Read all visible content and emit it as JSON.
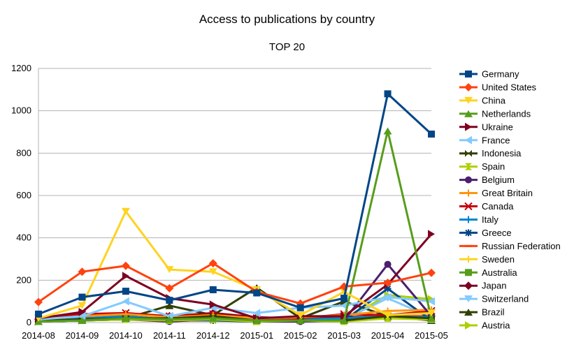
{
  "chart_data": {
    "type": "line",
    "title": "Access to publications by country",
    "subtitle": "TOP 20",
    "xlabel": "",
    "ylabel": "",
    "ylim": [
      0,
      1200
    ],
    "yticks": [
      0,
      200,
      400,
      600,
      800,
      1000,
      1200
    ],
    "grid": "horizontal",
    "legend_position": "right",
    "categories": [
      "2014-08",
      "2014-09",
      "2014-10",
      "2014-11",
      "2014-12",
      "2015-01",
      "2015-02",
      "2015-03",
      "2015-04",
      "2015-05"
    ],
    "series": [
      {
        "name": "Germany",
        "color": "#004586",
        "marker": "square",
        "values": [
          40,
          120,
          148,
          105,
          155,
          140,
          70,
          115,
          1080,
          890
        ]
      },
      {
        "name": "United States",
        "color": "#ff420e",
        "marker": "diamond",
        "values": [
          97,
          240,
          268,
          162,
          280,
          145,
          90,
          170,
          188,
          235
        ]
      },
      {
        "name": "China",
        "color": "#ffd320",
        "marker": "triangle-down",
        "values": [
          20,
          80,
          525,
          250,
          240,
          155,
          35,
          145,
          35,
          45
        ]
      },
      {
        "name": "Netherlands",
        "color": "#579d1c",
        "marker": "triangle-up",
        "values": [
          5,
          10,
          20,
          15,
          20,
          10,
          10,
          10,
          905,
          20
        ]
      },
      {
        "name": "Ukraine",
        "color": "#7e0021",
        "marker": "triangle-right",
        "values": [
          20,
          50,
          220,
          115,
          85,
          20,
          30,
          30,
          180,
          418
        ]
      },
      {
        "name": "France",
        "color": "#83caff",
        "marker": "triangle-left",
        "values": [
          15,
          30,
          100,
          30,
          70,
          45,
          70,
          80,
          120,
          100
        ]
      },
      {
        "name": "Indonesia",
        "color": "#314004",
        "marker": "bowtie",
        "values": [
          10,
          15,
          20,
          20,
          30,
          10,
          10,
          10,
          30,
          20
        ]
      },
      {
        "name": "Spain",
        "color": "#aecf00",
        "marker": "hourglass",
        "values": [
          5,
          10,
          15,
          10,
          15,
          5,
          10,
          5,
          20,
          15
        ]
      },
      {
        "name": "Belgium",
        "color": "#4b1f6f",
        "marker": "circle",
        "values": [
          5,
          10,
          15,
          5,
          15,
          5,
          5,
          10,
          275,
          30
        ]
      },
      {
        "name": "Great Britain",
        "color": "#ff950e",
        "marker": "plus",
        "values": [
          15,
          30,
          40,
          25,
          35,
          20,
          25,
          35,
          55,
          60
        ]
      },
      {
        "name": "Canada",
        "color": "#c5000b",
        "marker": "x",
        "values": [
          20,
          40,
          45,
          30,
          40,
          20,
          20,
          40,
          35,
          55
        ]
      },
      {
        "name": "Italy",
        "color": "#0084d1",
        "marker": "plus",
        "values": [
          10,
          20,
          30,
          15,
          25,
          10,
          15,
          20,
          30,
          25
        ]
      },
      {
        "name": "Greece",
        "color": "#004586",
        "marker": "star",
        "values": [
          5,
          10,
          15,
          10,
          10,
          5,
          10,
          10,
          160,
          10
        ]
      },
      {
        "name": "Russian Federation",
        "color": "#ff420e",
        "marker": "dash",
        "values": [
          10,
          20,
          25,
          15,
          20,
          10,
          15,
          20,
          30,
          30
        ]
      },
      {
        "name": "Sweden",
        "color": "#ffd320",
        "marker": "plus",
        "values": [
          5,
          10,
          15,
          10,
          10,
          5,
          10,
          10,
          20,
          15
        ]
      },
      {
        "name": "Australia",
        "color": "#579d1c",
        "marker": "square",
        "values": [
          10,
          15,
          20,
          15,
          20,
          10,
          10,
          15,
          25,
          20
        ]
      },
      {
        "name": "Japan",
        "color": "#7e0021",
        "marker": "diamond",
        "values": [
          15,
          30,
          40,
          30,
          45,
          25,
          20,
          25,
          30,
          30
        ]
      },
      {
        "name": "Switzerland",
        "color": "#83caff",
        "marker": "triangle-down",
        "values": [
          5,
          15,
          20,
          10,
          15,
          10,
          10,
          15,
          115,
          25
        ]
      },
      {
        "name": "Brazil",
        "color": "#314004",
        "marker": "triangle-up",
        "values": [
          5,
          10,
          20,
          80,
          35,
          165,
          20,
          100,
          30,
          10
        ]
      },
      {
        "name": "Austria",
        "color": "#aecf00",
        "marker": "triangle-right",
        "values": [
          5,
          10,
          15,
          10,
          15,
          5,
          10,
          10,
          130,
          110
        ]
      }
    ]
  }
}
